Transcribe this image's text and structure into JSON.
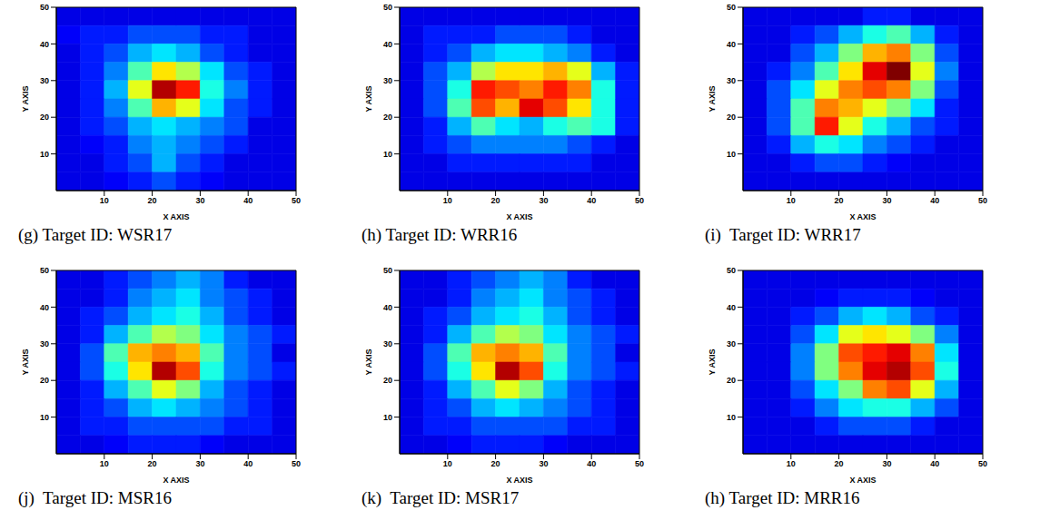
{
  "chart_data": [
    {
      "type": "heatmap",
      "caption": "(g) Target ID: WSR17",
      "x_label": "X AXIS",
      "y_label": "Y AXIS",
      "xlim": [
        0,
        50
      ],
      "ylim": [
        0,
        50
      ],
      "xticks": [
        10,
        20,
        30,
        40,
        50
      ],
      "yticks": [
        10,
        20,
        30,
        40,
        50
      ],
      "zlim": [
        0,
        1
      ],
      "z": [
        [
          0.1,
          0.1,
          0.1,
          0.1,
          0.1,
          0.1,
          0.1,
          0.1,
          0.1,
          0.1
        ],
        [
          0.12,
          0.15,
          0.15,
          0.2,
          0.2,
          0.2,
          0.15,
          0.15,
          0.1,
          0.1
        ],
        [
          0.1,
          0.15,
          0.2,
          0.3,
          0.35,
          0.3,
          0.2,
          0.15,
          0.1,
          0.1
        ],
        [
          0.1,
          0.15,
          0.25,
          0.45,
          0.65,
          0.55,
          0.35,
          0.2,
          0.15,
          0.1
        ],
        [
          0.1,
          0.15,
          0.3,
          0.6,
          0.95,
          0.85,
          0.4,
          0.25,
          0.15,
          0.1
        ],
        [
          0.1,
          0.15,
          0.25,
          0.45,
          0.7,
          0.6,
          0.35,
          0.2,
          0.15,
          0.1
        ],
        [
          0.1,
          0.15,
          0.2,
          0.3,
          0.35,
          0.3,
          0.25,
          0.2,
          0.1,
          0.1
        ],
        [
          0.1,
          0.12,
          0.15,
          0.25,
          0.3,
          0.25,
          0.2,
          0.15,
          0.1,
          0.1
        ],
        [
          0.1,
          0.1,
          0.15,
          0.2,
          0.3,
          0.2,
          0.15,
          0.1,
          0.1,
          0.1
        ],
        [
          0.1,
          0.1,
          0.12,
          0.15,
          0.2,
          0.15,
          0.12,
          0.1,
          0.1,
          0.1
        ]
      ]
    },
    {
      "type": "heatmap",
      "caption": "(h) Target ID: WRR16",
      "x_label": "X AXIS",
      "y_label": "Y AXIS",
      "xlim": [
        0,
        50
      ],
      "ylim": [
        0,
        50
      ],
      "xticks": [
        10,
        20,
        30,
        40,
        50
      ],
      "yticks": [
        10,
        20,
        30,
        40,
        50
      ],
      "zlim": [
        0,
        1
      ],
      "z": [
        [
          0.1,
          0.1,
          0.1,
          0.1,
          0.1,
          0.1,
          0.1,
          0.1,
          0.1,
          0.1
        ],
        [
          0.1,
          0.15,
          0.15,
          0.15,
          0.2,
          0.2,
          0.2,
          0.15,
          0.1,
          0.1
        ],
        [
          0.1,
          0.15,
          0.2,
          0.3,
          0.35,
          0.35,
          0.3,
          0.25,
          0.15,
          0.1
        ],
        [
          0.1,
          0.2,
          0.3,
          0.55,
          0.65,
          0.65,
          0.7,
          0.6,
          0.3,
          0.15
        ],
        [
          0.1,
          0.2,
          0.4,
          0.85,
          0.8,
          0.75,
          0.85,
          0.75,
          0.4,
          0.15
        ],
        [
          0.1,
          0.2,
          0.45,
          0.8,
          0.7,
          0.9,
          0.8,
          0.65,
          0.4,
          0.15
        ],
        [
          0.1,
          0.15,
          0.3,
          0.45,
          0.35,
          0.3,
          0.4,
          0.45,
          0.4,
          0.15
        ],
        [
          0.1,
          0.15,
          0.2,
          0.25,
          0.25,
          0.25,
          0.25,
          0.2,
          0.15,
          0.1
        ],
        [
          0.1,
          0.1,
          0.15,
          0.15,
          0.15,
          0.15,
          0.15,
          0.15,
          0.1,
          0.1
        ],
        [
          0.1,
          0.1,
          0.1,
          0.1,
          0.1,
          0.1,
          0.1,
          0.1,
          0.1,
          0.1
        ]
      ]
    },
    {
      "type": "heatmap",
      "caption": "(i)  Target ID: WRR17",
      "x_label": "X AXIS",
      "y_label": "Y AXIS",
      "xlim": [
        0,
        50
      ],
      "ylim": [
        0,
        50
      ],
      "xticks": [
        10,
        20,
        30,
        40,
        50
      ],
      "yticks": [
        10,
        20,
        30,
        40,
        50
      ],
      "zlim": [
        0,
        1
      ],
      "z": [
        [
          0.1,
          0.1,
          0.1,
          0.1,
          0.1,
          0.15,
          0.15,
          0.1,
          0.1,
          0.1
        ],
        [
          0.1,
          0.1,
          0.15,
          0.2,
          0.3,
          0.4,
          0.45,
          0.3,
          0.15,
          0.1
        ],
        [
          0.1,
          0.1,
          0.2,
          0.3,
          0.5,
          0.7,
          0.75,
          0.5,
          0.2,
          0.1
        ],
        [
          0.1,
          0.15,
          0.25,
          0.45,
          0.65,
          0.9,
          1.0,
          0.6,
          0.25,
          0.1
        ],
        [
          0.1,
          0.2,
          0.35,
          0.6,
          0.75,
          0.8,
          0.75,
          0.5,
          0.2,
          0.1
        ],
        [
          0.1,
          0.2,
          0.45,
          0.75,
          0.7,
          0.6,
          0.5,
          0.35,
          0.15,
          0.1
        ],
        [
          0.1,
          0.2,
          0.45,
          0.85,
          0.6,
          0.4,
          0.3,
          0.2,
          0.15,
          0.1
        ],
        [
          0.1,
          0.15,
          0.3,
          0.4,
          0.35,
          0.25,
          0.2,
          0.15,
          0.1,
          0.1
        ],
        [
          0.1,
          0.1,
          0.15,
          0.2,
          0.2,
          0.15,
          0.12,
          0.1,
          0.1,
          0.1
        ],
        [
          0.1,
          0.1,
          0.1,
          0.1,
          0.1,
          0.1,
          0.1,
          0.1,
          0.1,
          0.1
        ]
      ]
    },
    {
      "type": "heatmap",
      "caption": "(j)  Target ID: MSR16",
      "x_label": "X AXIS",
      "y_label": "Y AXIS",
      "xlim": [
        0,
        50
      ],
      "ylim": [
        0,
        50
      ],
      "xticks": [
        10,
        20,
        30,
        40,
        50
      ],
      "yticks": [
        10,
        20,
        30,
        40,
        50
      ],
      "zlim": [
        0,
        1
      ],
      "z": [
        [
          0.1,
          0.1,
          0.15,
          0.2,
          0.25,
          0.3,
          0.25,
          0.15,
          0.1,
          0.1
        ],
        [
          0.1,
          0.1,
          0.15,
          0.25,
          0.3,
          0.35,
          0.25,
          0.2,
          0.15,
          0.1
        ],
        [
          0.1,
          0.15,
          0.2,
          0.3,
          0.35,
          0.4,
          0.3,
          0.2,
          0.15,
          0.1
        ],
        [
          0.1,
          0.15,
          0.3,
          0.45,
          0.55,
          0.5,
          0.35,
          0.25,
          0.2,
          0.15
        ],
        [
          0.1,
          0.2,
          0.45,
          0.7,
          0.75,
          0.7,
          0.45,
          0.25,
          0.2,
          0.1
        ],
        [
          0.1,
          0.2,
          0.4,
          0.65,
          0.95,
          0.8,
          0.4,
          0.25,
          0.2,
          0.15
        ],
        [
          0.1,
          0.15,
          0.3,
          0.45,
          0.6,
          0.5,
          0.3,
          0.2,
          0.15,
          0.1
        ],
        [
          0.1,
          0.15,
          0.2,
          0.3,
          0.35,
          0.3,
          0.25,
          0.2,
          0.15,
          0.1
        ],
        [
          0.1,
          0.15,
          0.15,
          0.2,
          0.2,
          0.2,
          0.2,
          0.15,
          0.15,
          0.1
        ],
        [
          0.1,
          0.1,
          0.12,
          0.15,
          0.15,
          0.15,
          0.12,
          0.1,
          0.1,
          0.1
        ]
      ]
    },
    {
      "type": "heatmap",
      "caption": "(k)  Target ID: MSR17",
      "x_label": "X AXIS",
      "y_label": "Y AXIS",
      "xlim": [
        0,
        50
      ],
      "ylim": [
        0,
        50
      ],
      "xticks": [
        10,
        20,
        30,
        40,
        50
      ],
      "yticks": [
        10,
        20,
        30,
        40,
        50
      ],
      "zlim": [
        0,
        1
      ],
      "z": [
        [
          0.1,
          0.1,
          0.15,
          0.2,
          0.25,
          0.3,
          0.25,
          0.15,
          0.1,
          0.1
        ],
        [
          0.1,
          0.1,
          0.15,
          0.25,
          0.3,
          0.35,
          0.25,
          0.2,
          0.15,
          0.1
        ],
        [
          0.1,
          0.15,
          0.2,
          0.3,
          0.35,
          0.4,
          0.3,
          0.2,
          0.15,
          0.1
        ],
        [
          0.1,
          0.15,
          0.3,
          0.45,
          0.55,
          0.5,
          0.35,
          0.25,
          0.2,
          0.15
        ],
        [
          0.1,
          0.2,
          0.45,
          0.7,
          0.75,
          0.7,
          0.45,
          0.25,
          0.2,
          0.1
        ],
        [
          0.1,
          0.2,
          0.4,
          0.65,
          0.95,
          0.8,
          0.4,
          0.25,
          0.2,
          0.15
        ],
        [
          0.1,
          0.15,
          0.3,
          0.45,
          0.6,
          0.5,
          0.3,
          0.2,
          0.15,
          0.1
        ],
        [
          0.1,
          0.15,
          0.2,
          0.3,
          0.35,
          0.3,
          0.25,
          0.2,
          0.15,
          0.1
        ],
        [
          0.1,
          0.15,
          0.15,
          0.2,
          0.2,
          0.2,
          0.2,
          0.15,
          0.15,
          0.1
        ],
        [
          0.1,
          0.1,
          0.12,
          0.15,
          0.15,
          0.15,
          0.12,
          0.1,
          0.1,
          0.1
        ]
      ]
    },
    {
      "type": "heatmap",
      "caption": "(h) Target ID: MRR16",
      "x_label": "X AXIS",
      "y_label": "Y AXIS",
      "xlim": [
        0,
        50
      ],
      "ylim": [
        0,
        50
      ],
      "xticks": [
        10,
        20,
        30,
        40,
        50
      ],
      "yticks": [
        10,
        20,
        30,
        40,
        50
      ],
      "zlim": [
        0,
        1
      ],
      "z": [
        [
          0.1,
          0.1,
          0.1,
          0.1,
          0.1,
          0.1,
          0.1,
          0.1,
          0.1,
          0.1
        ],
        [
          0.1,
          0.1,
          0.1,
          0.12,
          0.15,
          0.15,
          0.15,
          0.12,
          0.1,
          0.1
        ],
        [
          0.1,
          0.1,
          0.15,
          0.2,
          0.3,
          0.35,
          0.3,
          0.2,
          0.15,
          0.1
        ],
        [
          0.1,
          0.1,
          0.2,
          0.35,
          0.6,
          0.65,
          0.6,
          0.5,
          0.25,
          0.1
        ],
        [
          0.1,
          0.1,
          0.25,
          0.5,
          0.8,
          0.85,
          0.9,
          0.75,
          0.35,
          0.1
        ],
        [
          0.1,
          0.1,
          0.25,
          0.5,
          0.75,
          0.9,
          0.95,
          0.8,
          0.4,
          0.1
        ],
        [
          0.1,
          0.1,
          0.2,
          0.35,
          0.5,
          0.75,
          0.8,
          0.6,
          0.3,
          0.1
        ],
        [
          0.1,
          0.1,
          0.15,
          0.25,
          0.35,
          0.4,
          0.4,
          0.3,
          0.2,
          0.1
        ],
        [
          0.1,
          0.1,
          0.1,
          0.15,
          0.2,
          0.2,
          0.2,
          0.15,
          0.1,
          0.1
        ],
        [
          0.1,
          0.1,
          0.1,
          0.1,
          0.1,
          0.1,
          0.1,
          0.1,
          0.1,
          0.1
        ]
      ]
    }
  ]
}
